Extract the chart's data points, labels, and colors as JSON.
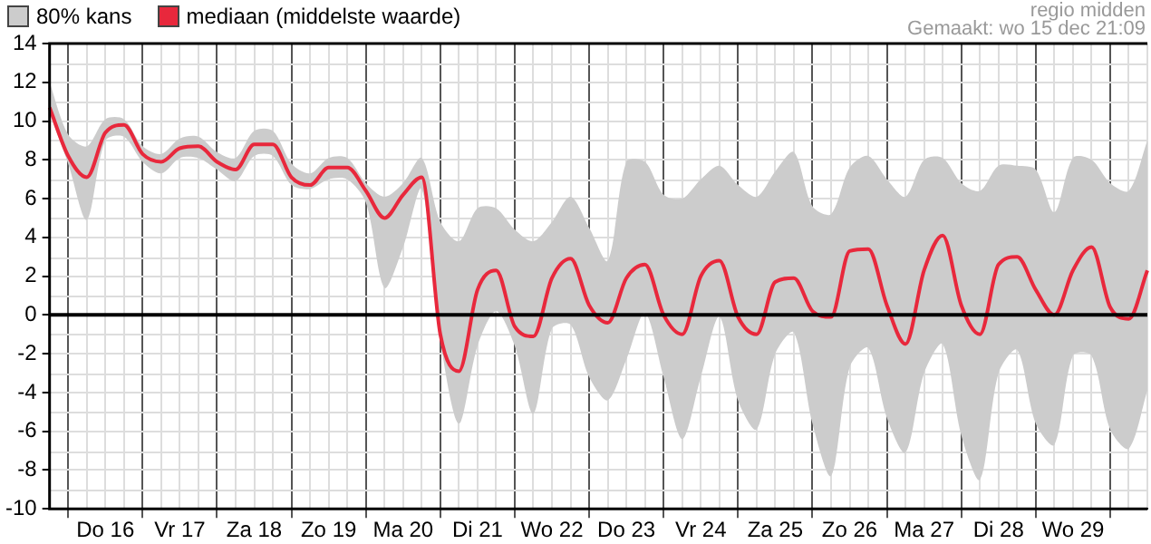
{
  "chart_data": {
    "type": "line",
    "annotations": [
      "80% kans",
      "regio midden",
      "Gemaakt: wo 15 dec 21:09"
    ],
    "categories": [
      null,
      null,
      null,
      "Do 16",
      null,
      null,
      null,
      "Vr 17",
      null,
      null,
      null,
      "Za 18",
      null,
      null,
      null,
      "Zo 19",
      null,
      null,
      null,
      "Ma 20",
      null,
      null,
      null,
      "Di 21",
      null,
      null,
      null,
      "Wo 22",
      null,
      null,
      null,
      "Do 23",
      null,
      null,
      null,
      "Vr 24",
      null,
      null,
      null,
      "Za 25",
      null,
      null,
      null,
      "Zo 26",
      null,
      null,
      null,
      "Ma 27",
      null,
      null,
      null,
      "Di 28",
      null,
      null,
      null,
      "Wo 29",
      null,
      null,
      null,
      null
    ],
    "ylim": [
      -10,
      14
    ],
    "yticks": [
      -10,
      -8,
      -6,
      -4,
      -2,
      0,
      2,
      4,
      6,
      8,
      10,
      12,
      14
    ],
    "grid": true,
    "legend": "top left",
    "ref_lines": [
      {
        "axis": "y",
        "value": 0,
        "color": "#000000"
      }
    ],
    "series": [
      {
        "name": "mediaan (middelste waarde)",
        "type": "line",
        "color": "#e8283c",
        "values": [
          10.7,
          8.2,
          7.1,
          9.4,
          9.8,
          8.3,
          7.9,
          8.6,
          8.7,
          7.9,
          7.5,
          8.8,
          8.8,
          7.1,
          6.7,
          7.6,
          7.6,
          6.4,
          5.0,
          6.2,
          7.1,
          -1.0,
          -2.9,
          1.3,
          2.3,
          -0.6,
          -1.1,
          1.9,
          2.9,
          0.5,
          -0.4,
          1.9,
          2.6,
          0.0,
          -1.0,
          2.0,
          2.8,
          -0.1,
          -1.0,
          1.7,
          1.9,
          0.2,
          -0.1,
          3.3,
          3.4,
          0.5,
          -1.5,
          2.3,
          4.1,
          0.5,
          -1.0,
          2.6,
          3.0,
          1.3,
          0.0,
          2.3,
          3.5,
          0.4,
          -0.2,
          2.3
        ],
        "upper": [
          12.0,
          9.3,
          8.7,
          10.1,
          10.1,
          8.7,
          8.3,
          9.1,
          9.2,
          8.4,
          8.1,
          9.5,
          9.5,
          7.8,
          7.3,
          8.1,
          8.1,
          6.8,
          6.1,
          6.8,
          8.1,
          4.8,
          3.8,
          5.5,
          5.5,
          4.4,
          3.8,
          4.8,
          6.1,
          4.5,
          2.8,
          7.9,
          7.9,
          6.2,
          6.0,
          7.0,
          7.7,
          6.7,
          6.1,
          7.4,
          8.4,
          5.6,
          5.2,
          7.6,
          8.2,
          7.0,
          6.1,
          8.0,
          8.1,
          6.8,
          6.4,
          7.7,
          7.7,
          7.5,
          5.3,
          8.1,
          8.0,
          6.8,
          6.4,
          9.0
        ],
        "lower": [
          10.4,
          7.8,
          4.9,
          9.0,
          9.2,
          7.9,
          7.3,
          8.1,
          8.1,
          7.5,
          6.9,
          8.2,
          8.2,
          6.7,
          6.5,
          7.0,
          7.0,
          5.8,
          1.4,
          3.5,
          6.5,
          -1.3,
          -5.6,
          -1.6,
          0.2,
          -1.6,
          -5.1,
          -0.7,
          -0.5,
          -3.2,
          -4.4,
          -2.3,
          0.1,
          -3.2,
          -6.4,
          -3.2,
          -0.1,
          -4.4,
          -5.9,
          -2.0,
          -0.9,
          -5.6,
          -8.3,
          -2.7,
          -1.7,
          -5.3,
          -7.1,
          -3.0,
          -1.5,
          -6.2,
          -8.5,
          -3.0,
          -1.8,
          -5.6,
          -6.7,
          -2.1,
          -2.1,
          -5.9,
          -6.9,
          -3.9
        ]
      }
    ]
  }
}
